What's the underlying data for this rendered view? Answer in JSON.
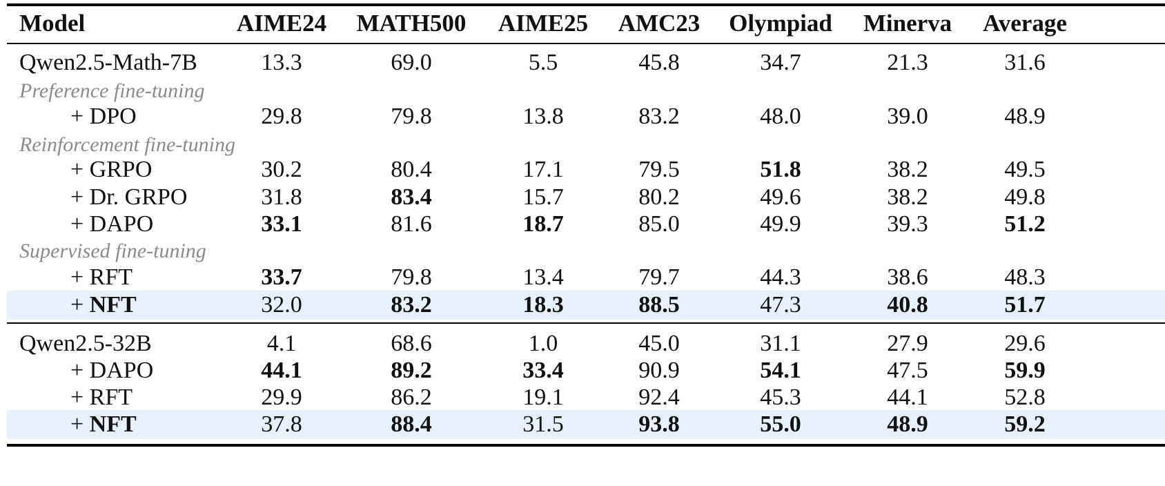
{
  "table": {
    "headers": [
      "Model",
      "AIME24",
      "MATH500",
      "AIME25",
      "AMC23",
      "Olympiad",
      "Minerva",
      "Average"
    ],
    "sections": {
      "preference": "Preference fine-tuning",
      "reinforcement": "Reinforcement fine-tuning",
      "supervised": "Supervised fine-tuning"
    },
    "rows": [
      {
        "model": "Qwen2.5-Math-7B",
        "values": [
          "13.3",
          "69.0",
          "5.5",
          "45.8",
          "34.7",
          "21.3",
          "31.6"
        ]
      },
      {
        "model": "+ DPO",
        "values": [
          "29.8",
          "79.8",
          "13.8",
          "83.2",
          "48.0",
          "39.0",
          "48.9"
        ]
      },
      {
        "model": "+ GRPO",
        "values": [
          "30.2",
          "80.4",
          "17.1",
          "79.5",
          "51.8",
          "38.2",
          "49.5"
        ]
      },
      {
        "model": "+ Dr. GRPO",
        "values": [
          "31.8",
          "83.4",
          "15.7",
          "80.2",
          "49.6",
          "38.2",
          "49.8"
        ]
      },
      {
        "model": "+ DAPO",
        "values": [
          "33.1",
          "81.6",
          "18.7",
          "85.0",
          "49.9",
          "39.3",
          "51.2"
        ]
      },
      {
        "model": "+ RFT",
        "values": [
          "33.7",
          "79.8",
          "13.4",
          "79.7",
          "44.3",
          "38.6",
          "48.3"
        ]
      },
      {
        "model_prefix": "+ ",
        "model_name": "NFT",
        "values": [
          "32.0",
          "83.2",
          "18.3",
          "88.5",
          "47.3",
          "40.8",
          "51.7"
        ]
      },
      {
        "model": "Qwen2.5-32B",
        "values": [
          "4.1",
          "68.6",
          "1.0",
          "45.0",
          "31.1",
          "27.9",
          "29.6"
        ]
      },
      {
        "model": "+ DAPO",
        "values": [
          "44.1",
          "89.2",
          "33.4",
          "90.9",
          "54.1",
          "47.5",
          "59.9"
        ]
      },
      {
        "model": "+ RFT",
        "values": [
          "29.9",
          "86.2",
          "19.1",
          "92.4",
          "45.3",
          "44.1",
          "52.8"
        ]
      },
      {
        "model_prefix": "+ ",
        "model_name": "NFT",
        "values": [
          "37.8",
          "88.4",
          "31.5",
          "93.8",
          "55.0",
          "48.9",
          "59.2"
        ]
      }
    ]
  },
  "colors": {
    "highlight_row": "#e8f1fb",
    "section_label": "#8a8a8a"
  }
}
